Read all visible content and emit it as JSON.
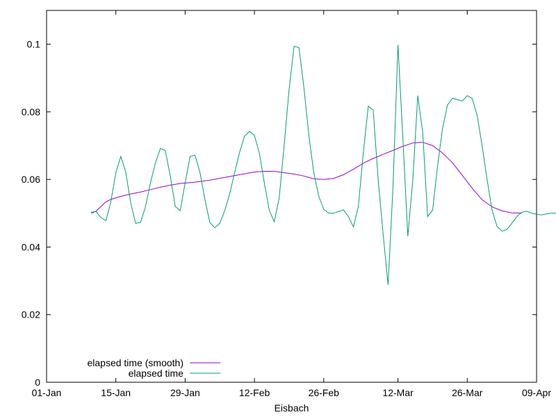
{
  "chart_data": {
    "type": "line",
    "xlabel": "Eisbach",
    "ylabel": "",
    "x_tick_labels": [
      "01-Jan",
      "15-Jan",
      "29-Jan",
      "12-Feb",
      "26-Feb",
      "12-Mar",
      "26-Mar",
      "09-Apr"
    ],
    "y_tick_labels": [
      "0",
      "0.02",
      "0.04",
      "0.06",
      "0.08",
      "0.1"
    ],
    "x_tick_values": [
      "2024-01-01",
      "2024-01-15",
      "2024-01-29",
      "2024-02-12",
      "2024-02-26",
      "2024-03-12",
      "2024-03-26",
      "2024-04-09"
    ],
    "y_tick_values": [
      0,
      0.02,
      0.04,
      0.06,
      0.08,
      0.1
    ],
    "xlim": [
      "2024-01-01",
      "2024-04-09"
    ],
    "ylim": [
      0,
      0.11
    ],
    "grid": false,
    "legend_position": "bottom-left",
    "series": [
      {
        "name": "elapsed time (smooth)",
        "color": "#9400d3",
        "points": [
          [
            "2024-01-10",
            0.05
          ],
          [
            "2024-01-11",
            0.0506
          ],
          [
            "2024-01-12",
            0.052
          ],
          [
            "2024-01-13",
            0.0534
          ],
          [
            "2024-01-14",
            0.0541
          ],
          [
            "2024-01-16",
            0.055
          ],
          [
            "2024-01-18",
            0.0557
          ],
          [
            "2024-01-20",
            0.0563
          ],
          [
            "2024-01-22",
            0.057
          ],
          [
            "2024-01-24",
            0.0577
          ],
          [
            "2024-01-26",
            0.0583
          ],
          [
            "2024-01-28",
            0.0588
          ],
          [
            "2024-01-31",
            0.0592
          ],
          [
            "2024-02-03",
            0.0598
          ],
          [
            "2024-02-06",
            0.0606
          ],
          [
            "2024-02-09",
            0.0614
          ],
          [
            "2024-02-12",
            0.0622
          ],
          [
            "2024-02-14",
            0.0624
          ],
          [
            "2024-02-16",
            0.0624
          ],
          [
            "2024-02-18",
            0.062
          ],
          [
            "2024-02-20",
            0.0616
          ],
          [
            "2024-02-22",
            0.061
          ],
          [
            "2024-02-24",
            0.0602
          ],
          [
            "2024-02-26",
            0.06
          ],
          [
            "2024-02-28",
            0.0603
          ],
          [
            "2024-03-01",
            0.0614
          ],
          [
            "2024-03-03",
            0.063
          ],
          [
            "2024-03-05",
            0.0648
          ],
          [
            "2024-03-07",
            0.0662
          ],
          [
            "2024-03-09",
            0.0674
          ],
          [
            "2024-03-11",
            0.0686
          ],
          [
            "2024-03-13",
            0.0698
          ],
          [
            "2024-03-15",
            0.0708
          ],
          [
            "2024-03-17",
            0.071
          ],
          [
            "2024-03-19",
            0.07
          ],
          [
            "2024-03-21",
            0.0678
          ],
          [
            "2024-03-23",
            0.065
          ],
          [
            "2024-03-25",
            0.0612
          ],
          [
            "2024-03-27",
            0.0574
          ],
          [
            "2024-03-29",
            0.054
          ],
          [
            "2024-03-31",
            0.0519
          ],
          [
            "2024-04-02",
            0.0507
          ],
          [
            "2024-04-04",
            0.0501
          ],
          [
            "2024-04-06",
            0.05
          ]
        ]
      },
      {
        "name": "elapsed time",
        "color": "#009e73",
        "points": [
          [
            "2024-01-10",
            0.0503
          ],
          [
            "2024-01-11",
            0.0505
          ],
          [
            "2024-01-12",
            0.0487
          ],
          [
            "2024-01-13",
            0.0478
          ],
          [
            "2024-01-14",
            0.0535
          ],
          [
            "2024-01-15",
            0.062
          ],
          [
            "2024-01-16",
            0.0668
          ],
          [
            "2024-01-17",
            0.0622
          ],
          [
            "2024-01-18",
            0.053
          ],
          [
            "2024-01-19",
            0.047
          ],
          [
            "2024-01-20",
            0.0473
          ],
          [
            "2024-01-21",
            0.052
          ],
          [
            "2024-01-22",
            0.059
          ],
          [
            "2024-01-23",
            0.065
          ],
          [
            "2024-01-24",
            0.0692
          ],
          [
            "2024-01-25",
            0.0685
          ],
          [
            "2024-01-26",
            0.061
          ],
          [
            "2024-01-27",
            0.052
          ],
          [
            "2024-01-28",
            0.0508
          ],
          [
            "2024-01-29",
            0.059
          ],
          [
            "2024-01-30",
            0.0668
          ],
          [
            "2024-01-31",
            0.0672
          ],
          [
            "2024-02-01",
            0.062
          ],
          [
            "2024-02-02",
            0.054
          ],
          [
            "2024-02-03",
            0.0472
          ],
          [
            "2024-02-04",
            0.0457
          ],
          [
            "2024-02-05",
            0.047
          ],
          [
            "2024-02-06",
            0.0508
          ],
          [
            "2024-02-07",
            0.0558
          ],
          [
            "2024-02-08",
            0.062
          ],
          [
            "2024-02-09",
            0.068
          ],
          [
            "2024-02-10",
            0.0728
          ],
          [
            "2024-02-11",
            0.0742
          ],
          [
            "2024-02-12",
            0.073
          ],
          [
            "2024-02-13",
            0.0678
          ],
          [
            "2024-02-14",
            0.059
          ],
          [
            "2024-02-15",
            0.0508
          ],
          [
            "2024-02-16",
            0.0475
          ],
          [
            "2024-02-17",
            0.0545
          ],
          [
            "2024-02-18",
            0.07
          ],
          [
            "2024-02-19",
            0.0865
          ],
          [
            "2024-02-20",
            0.0994
          ],
          [
            "2024-02-21",
            0.099
          ],
          [
            "2024-02-22",
            0.0872
          ],
          [
            "2024-02-23",
            0.073
          ],
          [
            "2024-02-24",
            0.062
          ],
          [
            "2024-02-25",
            0.055
          ],
          [
            "2024-02-26",
            0.0512
          ],
          [
            "2024-02-27",
            0.05
          ],
          [
            "2024-02-28",
            0.05
          ],
          [
            "2024-02-29",
            0.0505
          ],
          [
            "2024-03-01",
            0.051
          ],
          [
            "2024-03-02",
            0.049
          ],
          [
            "2024-03-03",
            0.046
          ],
          [
            "2024-03-04",
            0.052
          ],
          [
            "2024-03-05",
            0.068
          ],
          [
            "2024-03-06",
            0.0817
          ],
          [
            "2024-03-07",
            0.0805
          ],
          [
            "2024-03-08",
            0.06
          ],
          [
            "2024-03-09",
            0.044
          ],
          [
            "2024-03-10",
            0.0288
          ],
          [
            "2024-03-11",
            0.058
          ],
          [
            "2024-03-12",
            0.0998
          ],
          [
            "2024-03-13",
            0.072
          ],
          [
            "2024-03-14",
            0.0432
          ],
          [
            "2024-03-15",
            0.06
          ],
          [
            "2024-03-16",
            0.0848
          ],
          [
            "2024-03-17",
            0.074
          ],
          [
            "2024-03-18",
            0.049
          ],
          [
            "2024-03-19",
            0.051
          ],
          [
            "2024-03-20",
            0.064
          ],
          [
            "2024-03-21",
            0.075
          ],
          [
            "2024-03-22",
            0.082
          ],
          [
            "2024-03-23",
            0.084
          ],
          [
            "2024-03-24",
            0.0836
          ],
          [
            "2024-03-25",
            0.0832
          ],
          [
            "2024-03-26",
            0.0848
          ],
          [
            "2024-03-27",
            0.084
          ],
          [
            "2024-03-28",
            0.079
          ],
          [
            "2024-03-29",
            0.07
          ],
          [
            "2024-03-30",
            0.06
          ],
          [
            "2024-03-31",
            0.051
          ],
          [
            "2024-04-01",
            0.0462
          ],
          [
            "2024-04-02",
            0.0447
          ],
          [
            "2024-04-03",
            0.0452
          ],
          [
            "2024-04-04",
            0.047
          ],
          [
            "2024-04-05",
            0.049
          ],
          [
            "2024-04-06",
            0.0503
          ],
          [
            "2024-04-07",
            0.0506
          ],
          [
            "2024-04-08",
            0.05
          ],
          [
            "2024-04-09",
            0.0497
          ],
          [
            "2024-04-10",
            0.0495
          ],
          [
            "2024-04-11",
            0.0498
          ],
          [
            "2024-04-12",
            0.05
          ],
          [
            "2024-04-13",
            0.05
          ]
        ]
      }
    ]
  }
}
